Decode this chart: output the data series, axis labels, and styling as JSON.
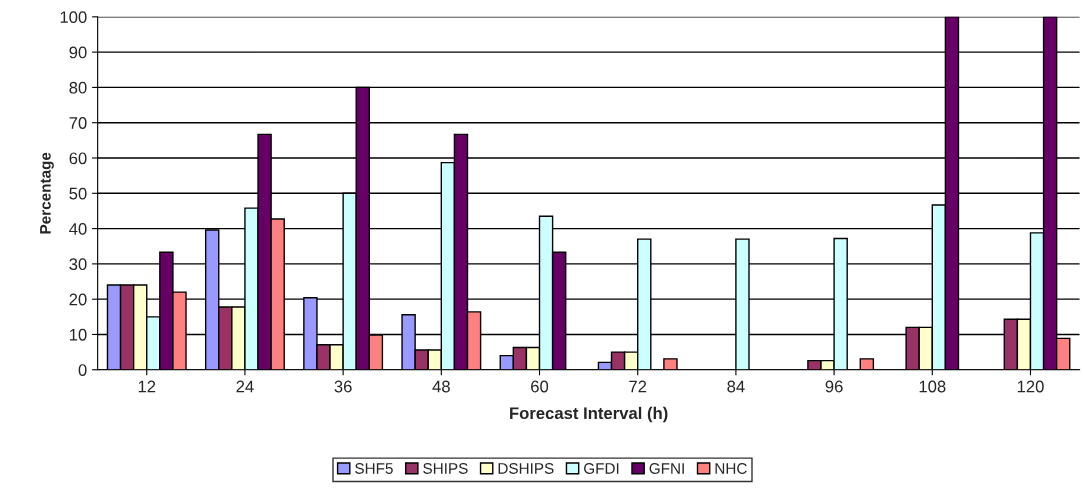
{
  "chart_data": {
    "type": "bar",
    "xlabel": "Forecast Interval (h)",
    "ylabel": "Percentage",
    "categories": [
      "12",
      "24",
      "36",
      "48",
      "60",
      "72",
      "84",
      "96",
      "108",
      "120"
    ],
    "series": [
      {
        "name": "SHF5",
        "color": "#9999ff",
        "values": [
          24,
          39.6,
          20.4,
          15.6,
          4.0,
          2.1,
          null,
          null,
          null,
          null
        ]
      },
      {
        "name": "SHIPS",
        "color": "#993366",
        "values": [
          24,
          17.8,
          7.1,
          5.6,
          6.3,
          5,
          null,
          2.6,
          12,
          14.3
        ]
      },
      {
        "name": "DSHIPS",
        "color": "#ffffcc",
        "values": [
          24,
          17.8,
          7.1,
          5.6,
          6.3,
          5,
          null,
          2.6,
          12,
          14.3
        ]
      },
      {
        "name": "GFDI",
        "color": "#ccffff",
        "values": [
          15,
          45.8,
          50,
          58.7,
          43.5,
          37,
          37,
          37.2,
          46.7,
          38.8
        ]
      },
      {
        "name": "GFNI",
        "color": "#660066",
        "values": [
          33.3,
          66.7,
          80,
          66.7,
          33.3,
          null,
          null,
          null,
          100,
          100
        ]
      },
      {
        "name": "NHC",
        "color": "#ff8080",
        "values": [
          22,
          42.7,
          9.8,
          16.4,
          null,
          3.1,
          null,
          3.1,
          null,
          8.9
        ]
      }
    ],
    "ylim": [
      0,
      100
    ],
    "yticks": [
      0,
      10,
      20,
      30,
      40,
      50,
      60,
      70,
      80,
      90,
      100
    ],
    "grid": "y",
    "legend": "bottom"
  }
}
